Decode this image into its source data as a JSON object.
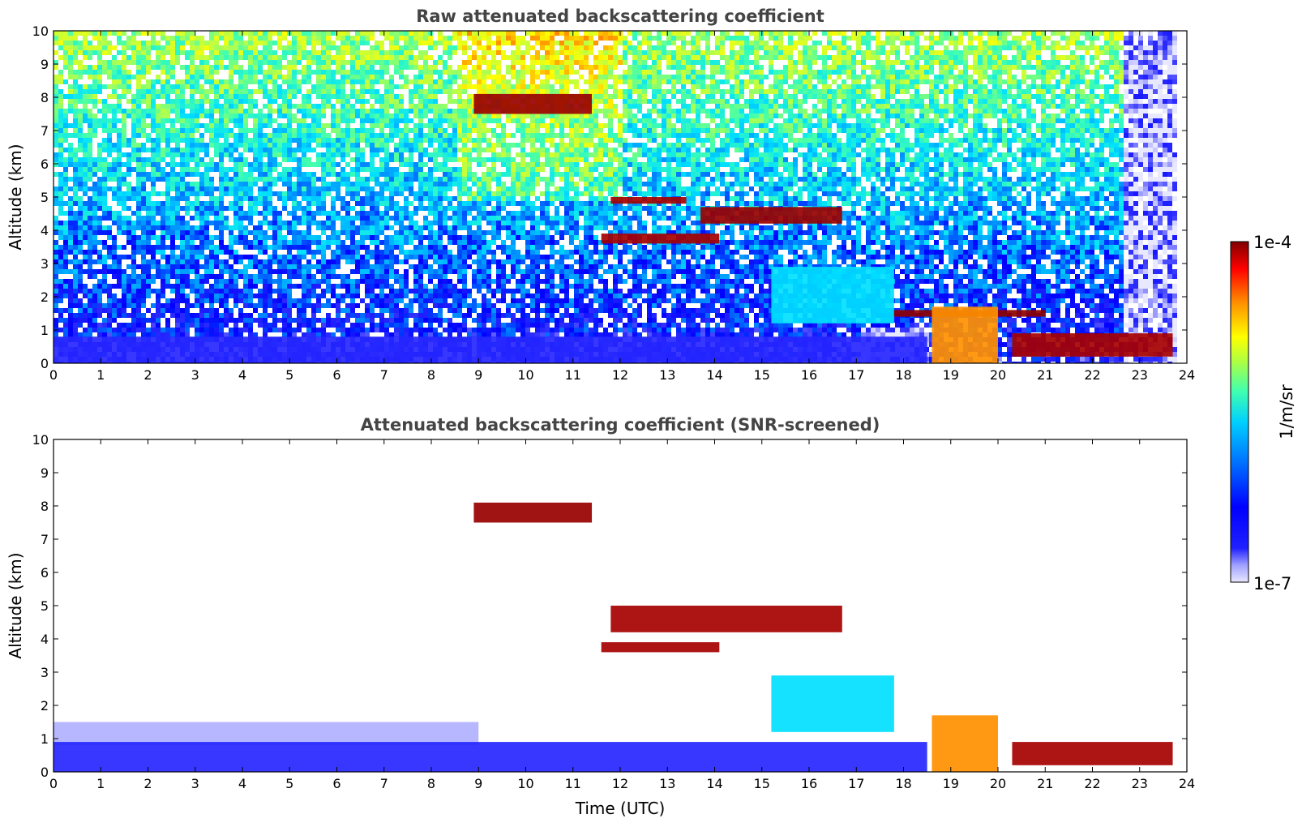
{
  "chart_data": [
    {
      "type": "heatmap",
      "title": "Raw attenuated backscattering coefficient",
      "xlabel": "",
      "ylabel": "Altitude (km)",
      "xlim": [
        0,
        24
      ],
      "ylim": [
        0,
        10
      ],
      "x_ticks": [
        "0",
        "1",
        "2",
        "3",
        "4",
        "5",
        "6",
        "7",
        "8",
        "9",
        "10",
        "11",
        "12",
        "13",
        "14",
        "15",
        "16",
        "17",
        "18",
        "19",
        "20",
        "21",
        "22",
        "23",
        "24"
      ],
      "y_ticks": [
        "0",
        "1",
        "2",
        "3",
        "4",
        "5",
        "6",
        "7",
        "8",
        "9",
        "10"
      ],
      "grid": false,
      "layers": [
        {
          "feature": "noisy-clear-air",
          "x": [
            0,
            23.7
          ],
          "y": [
            1,
            10
          ],
          "level": 0.3
        },
        {
          "feature": "boundary-layer",
          "x": [
            0,
            18.5
          ],
          "y": [
            0,
            0.8
          ],
          "level": 0.12
        },
        {
          "feature": "cirrus-layer",
          "x": [
            8.9,
            11.4
          ],
          "y": [
            7.5,
            8.1
          ],
          "level": 0.98
        },
        {
          "feature": "mid-cloud-layer",
          "x": [
            11.8,
            13.4
          ],
          "y": [
            4.8,
            5.0
          ],
          "level": 0.97
        },
        {
          "feature": "mid-cloud-layer",
          "x": [
            13.7,
            16.7
          ],
          "y": [
            4.2,
            4.7
          ],
          "level": 0.98
        },
        {
          "feature": "cloud-layer",
          "x": [
            11.6,
            14.1
          ],
          "y": [
            3.6,
            3.9
          ],
          "level": 0.97
        },
        {
          "feature": "convective-region",
          "x": [
            15.2,
            17.8
          ],
          "y": [
            1.2,
            2.9
          ],
          "level": 0.4
        },
        {
          "feature": "low-cloud-top",
          "x": [
            17.8,
            21.0
          ],
          "y": [
            1.4,
            1.6
          ],
          "level": 0.99
        },
        {
          "feature": "precipitation",
          "x": [
            18.6,
            20.0
          ],
          "y": [
            0,
            1.7
          ],
          "level": 0.8
        },
        {
          "feature": "low-cloud-layer",
          "x": [
            20.3,
            23.7
          ],
          "y": [
            0.2,
            0.9
          ],
          "level": 0.97
        }
      ]
    },
    {
      "type": "heatmap",
      "title": "Attenuated backscattering coefficient (SNR-screened)",
      "xlabel": "Time (UTC)",
      "ylabel": "Altitude (km)",
      "xlim": [
        0,
        24
      ],
      "ylim": [
        0,
        10
      ],
      "x_ticks": [
        "0",
        "1",
        "2",
        "3",
        "4",
        "5",
        "6",
        "7",
        "8",
        "9",
        "10",
        "11",
        "12",
        "13",
        "14",
        "15",
        "16",
        "17",
        "18",
        "19",
        "20",
        "21",
        "22",
        "23",
        "24"
      ],
      "y_ticks": [
        "0",
        "1",
        "2",
        "3",
        "4",
        "5",
        "6",
        "7",
        "8",
        "9",
        "10"
      ],
      "grid": false,
      "layers": [
        {
          "feature": "residual-layer",
          "x": [
            0,
            9.0
          ],
          "y": [
            0.8,
            1.5
          ],
          "level": 0.03
        },
        {
          "feature": "boundary-layer",
          "x": [
            0,
            18.5
          ],
          "y": [
            0,
            0.9
          ],
          "level": 0.12
        },
        {
          "feature": "cirrus-layer",
          "x": [
            8.9,
            11.4
          ],
          "y": [
            7.5,
            8.1
          ],
          "level": 0.98
        },
        {
          "feature": "mid-cloud-layer",
          "x": [
            11.8,
            16.7
          ],
          "y": [
            4.2,
            5.0
          ],
          "level": 0.97
        },
        {
          "feature": "cloud-layer",
          "x": [
            11.6,
            14.1
          ],
          "y": [
            3.6,
            3.9
          ],
          "level": 0.97
        },
        {
          "feature": "convective-region",
          "x": [
            15.2,
            17.8
          ],
          "y": [
            1.2,
            2.9
          ],
          "level": 0.4
        },
        {
          "feature": "precipitation",
          "x": [
            18.6,
            20.0
          ],
          "y": [
            0,
            1.7
          ],
          "level": 0.8
        },
        {
          "feature": "low-cloud-layer",
          "x": [
            20.3,
            23.7
          ],
          "y": [
            0.2,
            0.9
          ],
          "level": 0.97
        }
      ]
    }
  ],
  "colorbar": {
    "label": "1/m/sr",
    "max_label": "1e-4",
    "min_label": "1e-7",
    "range": [
      1e-07,
      0.0001
    ],
    "scale": "log",
    "colormap": [
      "#e8e8ff",
      "#3030ff",
      "#0000ff",
      "#0080ff",
      "#00e0ff",
      "#40ffb0",
      "#c0ff40",
      "#ffff00",
      "#ff9000",
      "#ff0000",
      "#800000"
    ]
  }
}
